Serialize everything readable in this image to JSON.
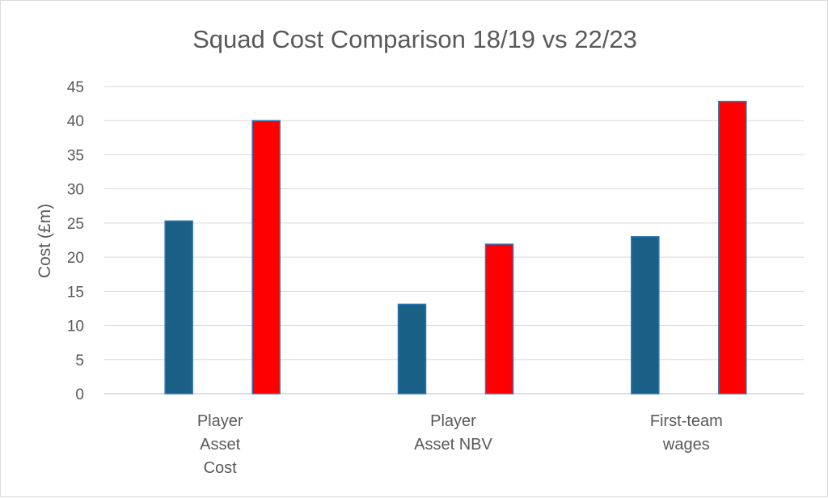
{
  "chart_data": {
    "type": "bar",
    "title": "Squad Cost Comparison 18/19 vs 22/23",
    "xlabel": "",
    "ylabel": "Cost (£m)",
    "ylim": [
      0,
      45
    ],
    "yticks": [
      0,
      5,
      10,
      15,
      20,
      25,
      30,
      35,
      40,
      45
    ],
    "grid": true,
    "legend": "none",
    "categories": [
      [
        "Player",
        "Asset",
        "Cost"
      ],
      [
        "Player",
        "Asset NBV"
      ],
      [
        "First-team",
        "wages"
      ]
    ],
    "series": [
      {
        "values": [
          25.3,
          13.1,
          23.0
        ],
        "color": "#1a5f86"
      },
      {
        "values": [
          40.0,
          21.9,
          42.8
        ],
        "color": "#ff0000"
      }
    ]
  }
}
